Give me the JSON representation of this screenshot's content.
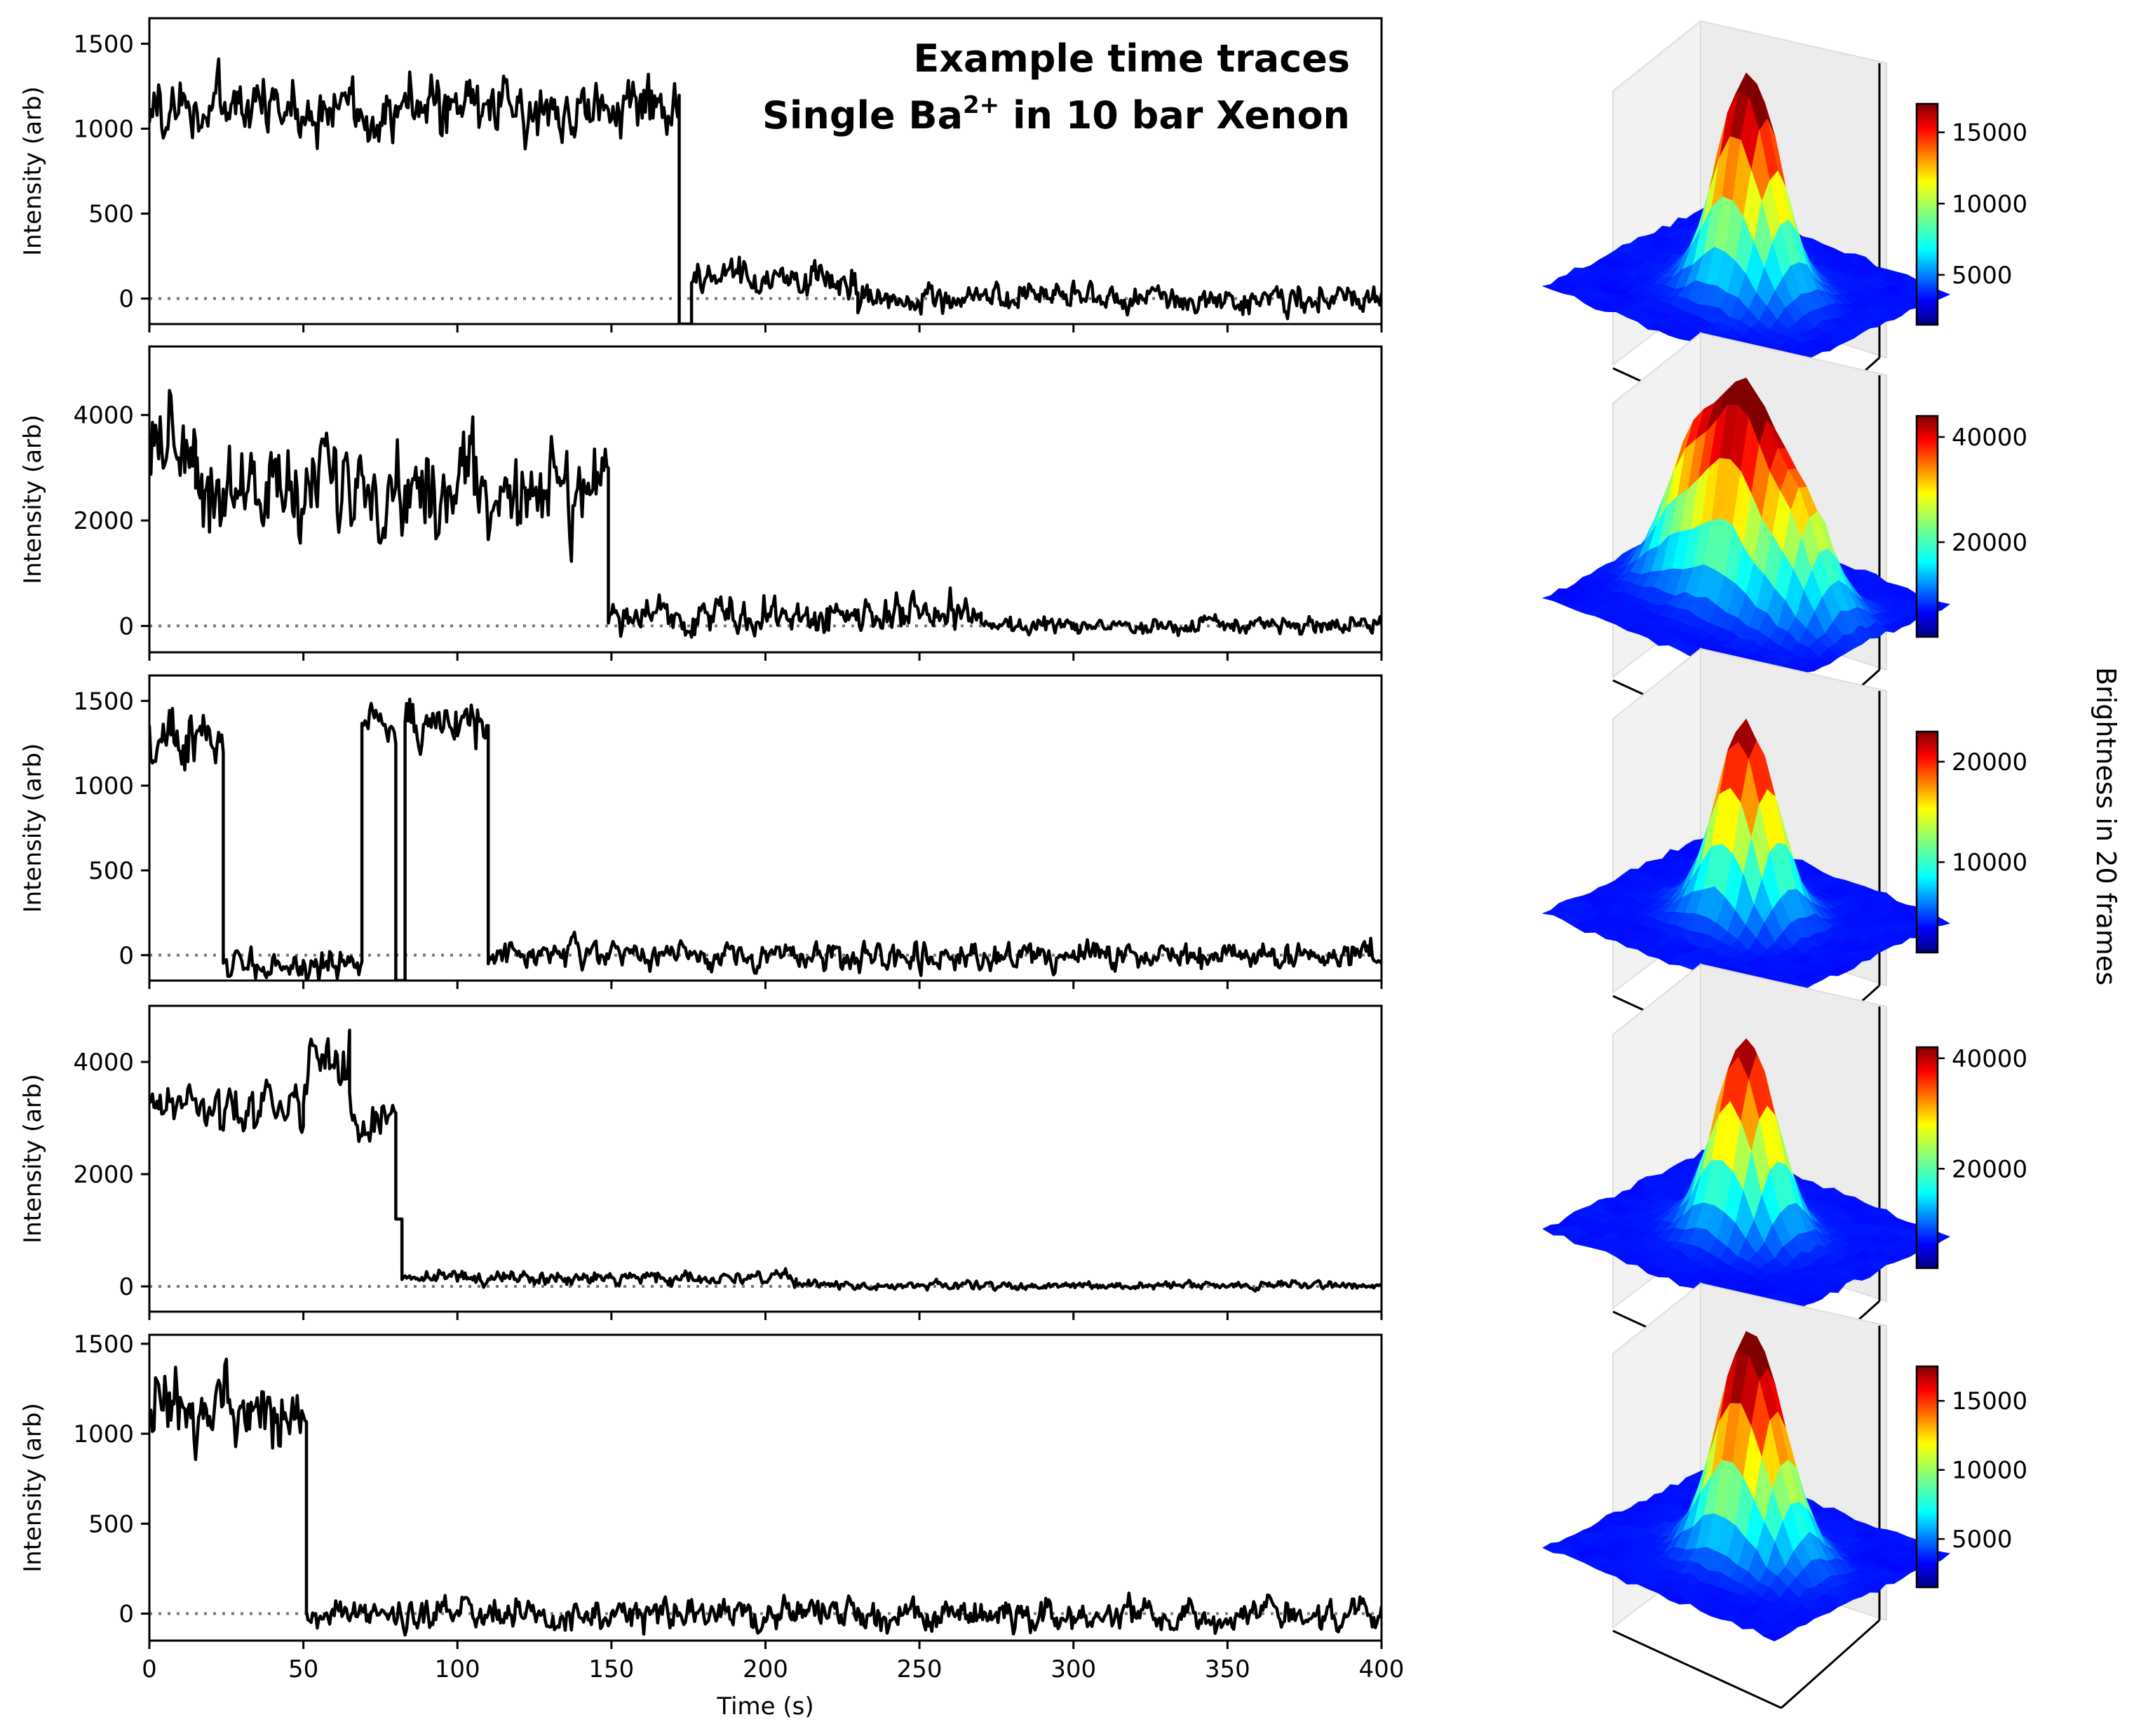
{
  "chart_data": [
    {
      "type": "line",
      "title_lines": [
        "Example time traces",
        "Single Ba",
        "2+",
        " in 10 bar Xenon"
      ],
      "ylabel": "Intensity (arb)",
      "xlabel": "",
      "xlim": [
        0,
        400
      ],
      "ylim": [
        -150,
        1650
      ],
      "yticks": [
        0,
        500,
        1000,
        1500
      ],
      "xticks": [
        0,
        50,
        100,
        150,
        200,
        250,
        300,
        350,
        400
      ],
      "baseline": 0,
      "segments": [
        {
          "x": [
            0,
            172
          ],
          "level": 1120,
          "noise": 130
        },
        {
          "x": [
            172,
            176
          ],
          "level": -150,
          "noise": 0
        },
        {
          "x": [
            176,
            230
          ],
          "level": 110,
          "noise": 70
        },
        {
          "x": [
            230,
            400
          ],
          "level": 0,
          "noise": 55
        }
      ]
    },
    {
      "type": "line",
      "ylabel": "Intensity (arb)",
      "xlim": [
        0,
        400
      ],
      "ylim": [
        -500,
        5300
      ],
      "yticks": [
        0,
        2000,
        4000
      ],
      "baseline": 0,
      "segments": [
        {
          "x": [
            0,
            15
          ],
          "level": 3600,
          "noise": 700
        },
        {
          "x": [
            15,
            149
          ],
          "level": 2600,
          "noise": 600
        },
        {
          "x": [
            149,
            270
          ],
          "level": 200,
          "noise": 250
        },
        {
          "x": [
            270,
            400
          ],
          "level": 0,
          "noise": 110
        }
      ]
    },
    {
      "type": "line",
      "ylabel": "Intensity (arb)",
      "xlim": [
        0,
        400
      ],
      "ylim": [
        -150,
        1650
      ],
      "yticks": [
        0,
        500,
        1000,
        1500
      ],
      "baseline": 0,
      "segments": [
        {
          "x": [
            0,
            24
          ],
          "level": 1250,
          "noise": 130
        },
        {
          "x": [
            24,
            69
          ],
          "level": -60,
          "noise": 60
        },
        {
          "x": [
            69,
            80
          ],
          "level": 1380,
          "noise": 90
        },
        {
          "x": [
            80,
            83
          ],
          "level": -150,
          "noise": 0
        },
        {
          "x": [
            83,
            110
          ],
          "level": 1360,
          "noise": 90
        },
        {
          "x": [
            110,
            400
          ],
          "level": 0,
          "noise": 55
        }
      ]
    },
    {
      "type": "line",
      "ylabel": "Intensity (arb)",
      "xlim": [
        0,
        400
      ],
      "ylim": [
        -450,
        5000
      ],
      "yticks": [
        0,
        2000,
        4000
      ],
      "baseline": 0,
      "segments": [
        {
          "x": [
            0,
            50
          ],
          "level": 3200,
          "noise": 300
        },
        {
          "x": [
            50,
            65
          ],
          "level": 4000,
          "noise": 350
        },
        {
          "x": [
            65,
            80
          ],
          "level": 3000,
          "noise": 250
        },
        {
          "x": [
            80,
            82
          ],
          "level": 1200,
          "noise": 0
        },
        {
          "x": [
            82,
            210
          ],
          "level": 150,
          "noise": 80
        },
        {
          "x": [
            210,
            400
          ],
          "level": 20,
          "noise": 50
        }
      ]
    },
    {
      "type": "line",
      "ylabel": "Intensity (arb)",
      "xlabel": "Time (s)",
      "xlim": [
        0,
        400
      ],
      "ylim": [
        -150,
        1550
      ],
      "yticks": [
        0,
        500,
        1000,
        1500
      ],
      "xticks": [
        0,
        50,
        100,
        150,
        200,
        250,
        300,
        350,
        400
      ],
      "baseline": 0,
      "segments": [
        {
          "x": [
            0,
            51
          ],
          "level": 1120,
          "noise": 140
        },
        {
          "x": [
            51,
            400
          ],
          "level": -10,
          "noise": 60
        }
      ]
    }
  ],
  "surfaces": [
    {
      "type": "surface3d",
      "peaks": [
        {
          "dx": 0,
          "dy": 0,
          "h": 1.0
        },
        {
          "dx": 0.25,
          "dy": -0.1,
          "h": 0.25
        }
      ],
      "colorbar": {
        "min": 1500,
        "max": 17000,
        "ticks": [
          5000,
          10000,
          15000
        ]
      }
    },
    {
      "type": "surface3d",
      "peaks": [
        {
          "dx": 0,
          "dy": 0,
          "h": 1.0
        },
        {
          "dx": -0.45,
          "dy": 0.05,
          "h": 0.75
        },
        {
          "dx": 0.45,
          "dy": 0.05,
          "h": 0.6
        }
      ],
      "colorbar": {
        "min": 2000,
        "max": 44000,
        "ticks": [
          20000,
          40000
        ]
      }
    },
    {
      "type": "surface3d",
      "peaks": [
        {
          "dx": 0,
          "dy": 0,
          "h": 1.0
        }
      ],
      "colorbar": {
        "min": 1000,
        "max": 23000,
        "ticks": [
          10000,
          20000
        ]
      }
    },
    {
      "type": "surface3d",
      "peaks": [
        {
          "dx": 0,
          "dy": 0,
          "h": 1.0
        }
      ],
      "colorbar": {
        "min": 2000,
        "max": 42000,
        "ticks": [
          20000,
          40000
        ]
      }
    },
    {
      "type": "surface3d",
      "peaks": [
        {
          "dx": 0,
          "dy": 0,
          "h": 1.0
        },
        {
          "dx": 0.3,
          "dy": -0.05,
          "h": 0.35
        }
      ],
      "colorbar": {
        "min": 1500,
        "max": 17500,
        "ticks": [
          5000,
          10000,
          15000
        ]
      }
    }
  ],
  "side_label": "Brightness in 20 frames",
  "colors": {
    "trace": "#000000",
    "baseline": "#777777"
  }
}
